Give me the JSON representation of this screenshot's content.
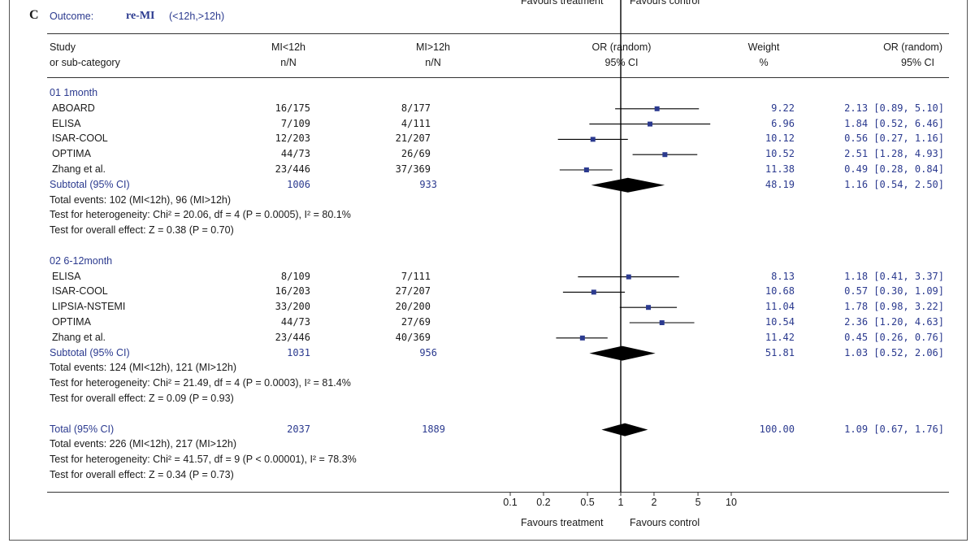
{
  "panel": {
    "letter": "C",
    "outcome_label": "Outcome:",
    "outcome_name": "re-MI",
    "outcome_sub": "(<12h,>12h)"
  },
  "top_labels": {
    "left": "Favours treatment",
    "right": "Favours control"
  },
  "header": {
    "study": "Study",
    "study2": "or sub-category",
    "g1": "MI<12h",
    "g1n": "n/N",
    "g2": "MI>12h",
    "g2n": "n/N",
    "or": "OR (random)",
    "or2": "95% CI",
    "weight": "Weight",
    "weight2": "%",
    "orcol": "OR (random)",
    "orcol2": "95% CI"
  },
  "bottom": {
    "left": "Favours treatment",
    "right": "Favours control"
  },
  "colors": {
    "text_blue": "#2b3a8f",
    "marker": "#2b3a8f",
    "diamond": "#000000"
  },
  "chart_data": {
    "type": "forest",
    "scale": "log",
    "xlim": [
      0.1,
      10
    ],
    "ticks": [
      0.1,
      0.2,
      0.5,
      1,
      2,
      5,
      10
    ],
    "tick_labels": [
      "0.1",
      "0.2",
      "0.5",
      "1",
      "2",
      "5",
      "10"
    ],
    "groups": [
      {
        "label": "01 1month",
        "studies": [
          {
            "name": "ABOARD",
            "g1": "16/175",
            "g2": "8/177",
            "weight": "9.22",
            "ci_text": "2.13 [0.89, 5.10]",
            "or": 2.13,
            "lo": 0.89,
            "hi": 5.1
          },
          {
            "name": "ELISA",
            "g1": "7/109",
            "g2": "4/111",
            "weight": "6.96",
            "ci_text": "1.84 [0.52, 6.46]",
            "or": 1.84,
            "lo": 0.52,
            "hi": 6.46
          },
          {
            "name": "ISAR-COOL",
            "g1": "12/203",
            "g2": "21/207",
            "weight": "10.12",
            "ci_text": "0.56 [0.27, 1.16]",
            "or": 0.56,
            "lo": 0.27,
            "hi": 1.16
          },
          {
            "name": "OPTIMA",
            "g1": "44/73",
            "g2": "26/69",
            "weight": "10.52",
            "ci_text": "2.51 [1.28, 4.93]",
            "or": 2.51,
            "lo": 1.28,
            "hi": 4.93
          },
          {
            "name": "Zhang et al.",
            "g1": "23/446",
            "g2": "37/369",
            "weight": "11.38",
            "ci_text": "0.49 [0.28, 0.84]",
            "or": 0.49,
            "lo": 0.28,
            "hi": 0.84
          }
        ],
        "subtotal": {
          "label": "Subtotal (95% CI)",
          "g1": "1006",
          "g2": "933",
          "weight": "48.19",
          "ci_text": "1.16 [0.54, 2.50]",
          "or": 1.16,
          "lo": 0.54,
          "hi": 2.5
        },
        "notes": [
          "Total events: 102 (MI<12h), 96 (MI>12h)",
          "Test for heterogeneity: Chi² = 20.06, df = 4 (P = 0.0005), I² = 80.1%",
          "Test for overall effect: Z = 0.38 (P = 0.70)"
        ]
      },
      {
        "label": "02 6-12month",
        "studies": [
          {
            "name": "ELISA",
            "g1": "8/109",
            "g2": "7/111",
            "weight": "8.13",
            "ci_text": "1.18 [0.41, 3.37]",
            "or": 1.18,
            "lo": 0.41,
            "hi": 3.37
          },
          {
            "name": "ISAR-COOL",
            "g1": "16/203",
            "g2": "27/207",
            "weight": "10.68",
            "ci_text": "0.57 [0.30, 1.09]",
            "or": 0.57,
            "lo": 0.3,
            "hi": 1.09
          },
          {
            "name": "LIPSIA-NSTEMI",
            "g1": "33/200",
            "g2": "20/200",
            "weight": "11.04",
            "ci_text": "1.78 [0.98, 3.22]",
            "or": 1.78,
            "lo": 0.98,
            "hi": 3.22
          },
          {
            "name": "OPTIMA",
            "g1": "44/73",
            "g2": "27/69",
            "weight": "10.54",
            "ci_text": "2.36 [1.20, 4.63]",
            "or": 2.36,
            "lo": 1.2,
            "hi": 4.63
          },
          {
            "name": "Zhang et al.",
            "g1": "23/446",
            "g2": "40/369",
            "weight": "11.42",
            "ci_text": "0.45 [0.26, 0.76]",
            "or": 0.45,
            "lo": 0.26,
            "hi": 0.76
          }
        ],
        "subtotal": {
          "label": "Subtotal (95% CI)",
          "g1": "1031",
          "g2": "956",
          "weight": "51.81",
          "ci_text": "1.03 [0.52, 2.06]",
          "or": 1.03,
          "lo": 0.52,
          "hi": 2.06
        },
        "notes": [
          "Total events: 124 (MI<12h), 121 (MI>12h)",
          "Test for heterogeneity: Chi² = 21.49, df = 4 (P = 0.0003), I² = 81.4%",
          "Test for overall effect: Z = 0.09 (P = 0.93)"
        ]
      }
    ],
    "total": {
      "label": "Total (95% CI)",
      "g1": "2037",
      "g2": "1889",
      "weight": "100.00",
      "ci_text": "1.09 [0.67, 1.76]",
      "or": 1.09,
      "lo": 0.67,
      "hi": 1.76
    },
    "total_notes": [
      "Total events: 226 (MI<12h), 217 (MI>12h)",
      "Test for heterogeneity: Chi² = 41.57, df = 9 (P < 0.00001), I² = 78.3%",
      "Test for overall effect: Z = 0.34 (P = 0.73)"
    ]
  }
}
